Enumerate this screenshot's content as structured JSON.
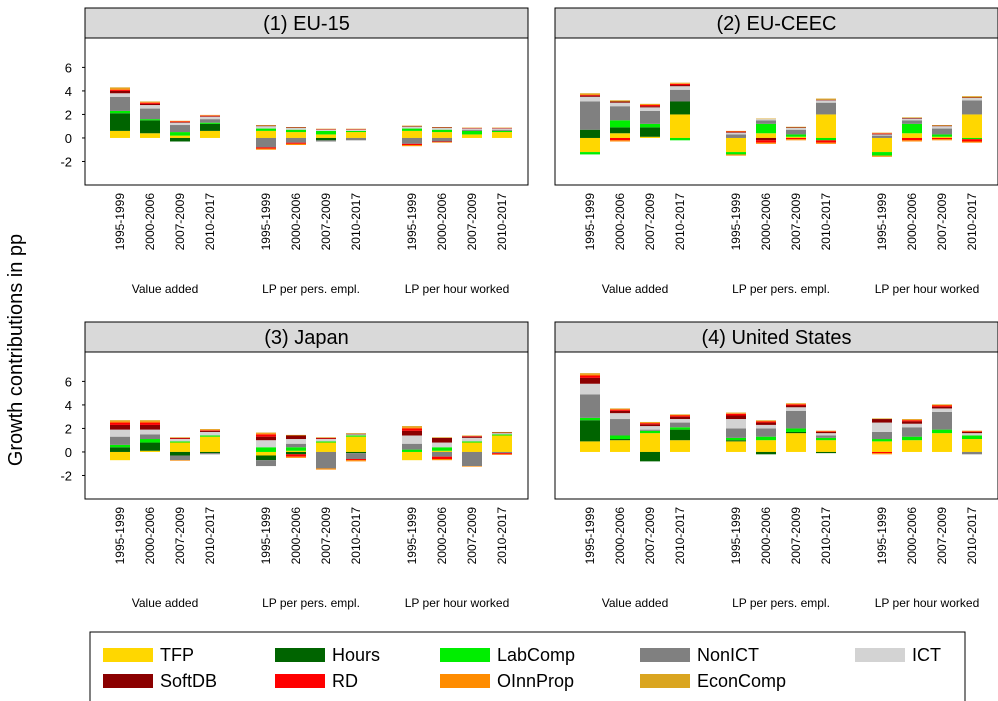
{
  "chart_data": {
    "type": "bar",
    "stacked": true,
    "y_label": "Growth contributions in pp",
    "panels": [
      "(1) EU-15",
      "(2) EU-CEEC",
      "(3) Japan",
      "(4) United States"
    ],
    "groups": [
      "Value added",
      "LP per pers. empl.",
      "LP per hour worked"
    ],
    "periods": [
      "1995-1999",
      "2000-2006",
      "2007-2009",
      "2010-2017"
    ],
    "ylim": [
      -4,
      8.5
    ],
    "yticks": [
      -2,
      0,
      2,
      4,
      6
    ],
    "series": [
      {
        "name": "TFP",
        "color": "#FFD700",
        "values": [
          [
            0.6,
            0.4,
            0.2,
            0.6,
            0.6,
            0.5,
            0.3,
            0.5,
            0.6,
            0.5,
            0.3,
            0.5
          ],
          [
            -1.2,
            0.4,
            0.1,
            2.0,
            -1.2,
            0.4,
            0.1,
            2.0,
            -1.2,
            0.4,
            0.1,
            2.0
          ],
          [
            -0.7,
            0.1,
            0.8,
            1.3,
            -0.3,
            0.1,
            0.8,
            1.3,
            -0.7,
            0.1,
            0.8,
            1.4
          ],
          [
            0.9,
            1.0,
            1.6,
            1.0,
            0.9,
            1.0,
            1.6,
            1.0,
            0.9,
            1.0,
            1.6,
            1.1
          ]
        ]
      },
      {
        "name": "Hours",
        "color": "#006400",
        "values": [
          [
            1.5,
            1.1,
            -0.3,
            0.6,
            0,
            0,
            -0.2,
            0,
            0,
            0,
            0,
            0
          ],
          [
            0.7,
            0.5,
            0.8,
            1.1,
            0,
            0,
            0,
            0,
            0,
            0,
            0,
            0
          ],
          [
            0.4,
            0.7,
            -0.3,
            -0.1,
            -0.4,
            -0.2,
            0,
            -0.1,
            0,
            0,
            0,
            0
          ],
          [
            1.8,
            0.1,
            -0.8,
            0.9,
            0.1,
            -0.2,
            0.1,
            -0.1,
            0,
            0,
            0,
            0
          ]
        ]
      },
      {
        "name": "LabComp",
        "color": "#00EE00",
        "values": [
          [
            0.2,
            0.1,
            0.3,
            0.1,
            0.2,
            0.2,
            0.3,
            0.1,
            0.2,
            0.2,
            0.3,
            0.1
          ],
          [
            -0.2,
            0.6,
            0.3,
            -0.2,
            -0.2,
            0.8,
            0.2,
            -0.2,
            -0.3,
            0.8,
            0.2,
            -0.1
          ],
          [
            0.2,
            0.3,
            0.1,
            0.1,
            0.4,
            0.3,
            0.1,
            0.1,
            0.2,
            0.3,
            0.1,
            0.1
          ],
          [
            0.2,
            0.3,
            0.2,
            0.2,
            0.2,
            0.3,
            0.3,
            0.2,
            0.2,
            0.3,
            0.3,
            0.3
          ]
        ]
      },
      {
        "name": "NonICT",
        "color": "#808080",
        "values": [
          [
            1.2,
            0.9,
            0.6,
            0.3,
            -0.8,
            -0.4,
            -0.1,
            -0.2,
            -0.5,
            -0.3,
            0.1,
            0.1
          ],
          [
            2.4,
            1.2,
            1.1,
            1.0,
            0.3,
            0.3,
            0.4,
            1.0,
            0.2,
            0.3,
            0.5,
            1.2
          ],
          [
            0.7,
            0.4,
            -0.4,
            -0.1,
            -0.5,
            0.3,
            -1.4,
            -0.5,
            0.5,
            -0.4,
            -1.2,
            -0.1
          ],
          [
            2.0,
            1.4,
            0.1,
            0.4,
            0.8,
            0.7,
            1.5,
            0.2,
            0.6,
            0.8,
            1.5,
            -0.2
          ]
        ]
      },
      {
        "name": "ICT",
        "color": "#D3D3D3",
        "values": [
          [
            0.3,
            0.3,
            0.2,
            0.2,
            0.2,
            0.15,
            0.1,
            0.1,
            0.15,
            0.15,
            0.1,
            0.1
          ],
          [
            0.4,
            0.3,
            0.3,
            0.3,
            0.15,
            0.1,
            0.15,
            0.2,
            0.1,
            0.15,
            0.2,
            0.2
          ],
          [
            0.6,
            0.4,
            0.2,
            0.3,
            0.6,
            0.4,
            0.2,
            0.1,
            0.7,
            0.4,
            0.3,
            0.1
          ],
          [
            0.9,
            0.5,
            0.3,
            0.3,
            0.8,
            0.3,
            0.3,
            0.2,
            0.8,
            0.3,
            0.3,
            0.2
          ]
        ]
      },
      {
        "name": "SoftDB",
        "color": "#8B0000",
        "values": [
          [
            0.2,
            0.1,
            0.05,
            0.05,
            0.05,
            0.05,
            0.03,
            0.03,
            0.05,
            0.05,
            0.03,
            0.03
          ],
          [
            0.1,
            0.1,
            0.1,
            0.1,
            0.05,
            -0.2,
            0.05,
            0.05,
            0.05,
            0.05,
            0.05,
            0.05
          ],
          [
            0.4,
            0.4,
            0.05,
            0.1,
            0.3,
            0.3,
            0.05,
            0.05,
            0.4,
            0.4,
            0.1,
            0.05
          ],
          [
            0.5,
            0.2,
            0.15,
            0.2,
            0.3,
            0.2,
            0.15,
            0.1,
            0.3,
            0.2,
            0.15,
            0.1
          ]
        ]
      },
      {
        "name": "RD",
        "color": "#FF0000",
        "values": [
          [
            0.1,
            0.1,
            0.05,
            0.05,
            -0.1,
            -0.1,
            0.02,
            0.02,
            -0.1,
            -0.05,
            0.02,
            0.02
          ],
          [
            0.05,
            -0.2,
            0.1,
            0.1,
            0.05,
            -0.2,
            -0.1,
            -0.2,
            0.05,
            -0.2,
            -0.1,
            -0.2
          ],
          [
            0.2,
            0.2,
            0.05,
            0.05,
            0.2,
            -0.2,
            0.05,
            -0.1,
            0.2,
            -0.2,
            0.05,
            -0.1
          ],
          [
            0.2,
            0.1,
            0.1,
            0.1,
            0.15,
            0.1,
            0.1,
            0.05,
            -0.1,
            0.1,
            0.1,
            0.05
          ]
        ]
      },
      {
        "name": "OInnProp",
        "color": "#FF8C00",
        "values": [
          [
            0.1,
            0.05,
            0.03,
            0.03,
            -0.1,
            -0.1,
            0.02,
            0.02,
            -0.1,
            -0.05,
            0.02,
            0.02
          ],
          [
            0.05,
            -0.1,
            0.05,
            0.05,
            -0.1,
            -0.1,
            -0.1,
            -0.1,
            -0.1,
            -0.1,
            -0.1,
            -0.1
          ],
          [
            0.1,
            0.1,
            -0.05,
            0.05,
            0.1,
            -0.1,
            -0.1,
            -0.1,
            0.1,
            -0.1,
            -0.05,
            -0.05
          ],
          [
            0.1,
            0.05,
            0.05,
            0.05,
            0.05,
            0.05,
            0.05,
            0.03,
            -0.1,
            0.05,
            0.05,
            0.03
          ]
        ]
      },
      {
        "name": "EconComp",
        "color": "#DAA520",
        "values": [
          [
            0.1,
            0.05,
            0.03,
            0.03,
            0.05,
            0.03,
            0.02,
            0.02,
            0.05,
            0.03,
            0.02,
            0.02
          ],
          [
            0.1,
            0.1,
            0.05,
            0.05,
            0.05,
            0.05,
            0.05,
            0.1,
            0.05,
            0.05,
            0.05,
            0.1
          ],
          [
            0.1,
            0.1,
            0.05,
            0.05,
            0.05,
            0.05,
            0.05,
            0.05,
            0.1,
            0.05,
            0.05,
            0.05
          ],
          [
            0.1,
            0.05,
            0.05,
            0.05,
            0.05,
            0.05,
            0.05,
            0.03,
            0.05,
            0.05,
            0.05,
            0.03
          ]
        ]
      }
    ]
  }
}
